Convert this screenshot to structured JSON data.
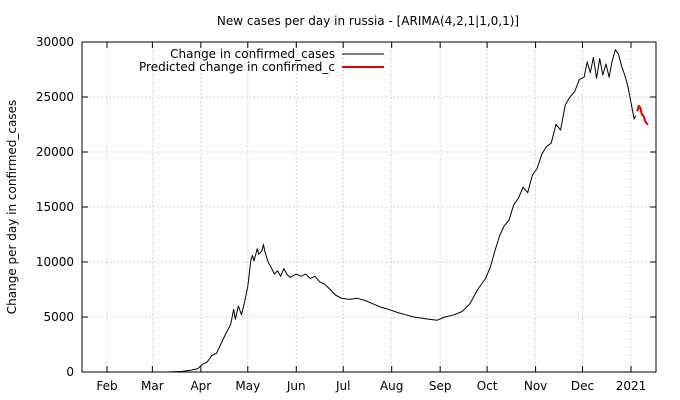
{
  "chart_data": {
    "type": "line",
    "title": "New cases per day in russia -  [ARIMA(4,2,1|1,0,1)]",
    "xlabel": "",
    "ylabel": "Change per day in confirmed_cases",
    "xlim": [
      "2020-01-16",
      "2021-01-17"
    ],
    "ylim": [
      0,
      30000
    ],
    "yticks": [
      0,
      5000,
      10000,
      15000,
      20000,
      25000,
      30000
    ],
    "xticks": [
      {
        "date": "2020-02-01",
        "label": "Feb"
      },
      {
        "date": "2020-03-01",
        "label": "Mar"
      },
      {
        "date": "2020-04-01",
        "label": "Apr"
      },
      {
        "date": "2020-05-01",
        "label": "May"
      },
      {
        "date": "2020-06-01",
        "label": "Jun"
      },
      {
        "date": "2020-07-01",
        "label": "Jul"
      },
      {
        "date": "2020-08-01",
        "label": "Aug"
      },
      {
        "date": "2020-09-01",
        "label": "Sep"
      },
      {
        "date": "2020-10-01",
        "label": "Oct"
      },
      {
        "date": "2020-11-01",
        "label": "Nov"
      },
      {
        "date": "2020-12-01",
        "label": "Dec"
      },
      {
        "date": "2021-01-01",
        "label": "2021"
      }
    ],
    "grid": true,
    "legend_position": "top-left",
    "series": [
      {
        "name": "Change in confirmed_cases",
        "color": "#000000",
        "points": [
          [
            "2020-03-10",
            0
          ],
          [
            "2020-03-20",
            50
          ],
          [
            "2020-03-25",
            150
          ],
          [
            "2020-03-30",
            300
          ],
          [
            "2020-04-02",
            700
          ],
          [
            "2020-04-05",
            900
          ],
          [
            "2020-04-08",
            1500
          ],
          [
            "2020-04-11",
            1700
          ],
          [
            "2020-04-14",
            2600
          ],
          [
            "2020-04-17",
            3500
          ],
          [
            "2020-04-20",
            4300
          ],
          [
            "2020-04-22",
            5700
          ],
          [
            "2020-04-23",
            4800
          ],
          [
            "2020-04-25",
            6000
          ],
          [
            "2020-04-27",
            5200
          ],
          [
            "2020-04-29",
            6400
          ],
          [
            "2020-05-01",
            7800
          ],
          [
            "2020-05-03",
            10200
          ],
          [
            "2020-05-04",
            10600
          ],
          [
            "2020-05-05",
            10100
          ],
          [
            "2020-05-07",
            11200
          ],
          [
            "2020-05-08",
            10700
          ],
          [
            "2020-05-10",
            11000
          ],
          [
            "2020-05-11",
            11600
          ],
          [
            "2020-05-12",
            10900
          ],
          [
            "2020-05-14",
            10000
          ],
          [
            "2020-05-16",
            9500
          ],
          [
            "2020-05-18",
            8900
          ],
          [
            "2020-05-20",
            9200
          ],
          [
            "2020-05-22",
            8700
          ],
          [
            "2020-05-24",
            9400
          ],
          [
            "2020-05-26",
            8900
          ],
          [
            "2020-05-28",
            8600
          ],
          [
            "2020-06-01",
            8900
          ],
          [
            "2020-06-04",
            8700
          ],
          [
            "2020-06-07",
            8900
          ],
          [
            "2020-06-10",
            8500
          ],
          [
            "2020-06-13",
            8700
          ],
          [
            "2020-06-16",
            8200
          ],
          [
            "2020-06-19",
            8000
          ],
          [
            "2020-06-22",
            7600
          ],
          [
            "2020-06-26",
            7000
          ],
          [
            "2020-06-30",
            6700
          ],
          [
            "2020-07-05",
            6600
          ],
          [
            "2020-07-10",
            6700
          ],
          [
            "2020-07-15",
            6500
          ],
          [
            "2020-07-20",
            6200
          ],
          [
            "2020-07-25",
            5900
          ],
          [
            "2020-07-30",
            5700
          ],
          [
            "2020-08-05",
            5400
          ],
          [
            "2020-08-10",
            5200
          ],
          [
            "2020-08-15",
            5000
          ],
          [
            "2020-08-20",
            4900
          ],
          [
            "2020-08-25",
            4800
          ],
          [
            "2020-08-30",
            4700
          ],
          [
            "2020-09-04",
            5000
          ],
          [
            "2020-09-10",
            5200
          ],
          [
            "2020-09-15",
            5500
          ],
          [
            "2020-09-20",
            6200
          ],
          [
            "2020-09-25",
            7500
          ],
          [
            "2020-09-30",
            8500
          ],
          [
            "2020-10-03",
            9500
          ],
          [
            "2020-10-06",
            11000
          ],
          [
            "2020-10-09",
            12400
          ],
          [
            "2020-10-12",
            13300
          ],
          [
            "2020-10-15",
            13800
          ],
          [
            "2020-10-18",
            15200
          ],
          [
            "2020-10-21",
            15800
          ],
          [
            "2020-10-24",
            16800
          ],
          [
            "2020-10-27",
            16300
          ],
          [
            "2020-10-30",
            17900
          ],
          [
            "2020-11-02",
            18500
          ],
          [
            "2020-11-05",
            19800
          ],
          [
            "2020-11-08",
            20500
          ],
          [
            "2020-11-11",
            20800
          ],
          [
            "2020-11-14",
            22500
          ],
          [
            "2020-11-17",
            22000
          ],
          [
            "2020-11-20",
            24300
          ],
          [
            "2020-11-23",
            25000
          ],
          [
            "2020-11-26",
            25500
          ],
          [
            "2020-11-29",
            26600
          ],
          [
            "2020-12-02",
            26800
          ],
          [
            "2020-12-04",
            28200
          ],
          [
            "2020-12-06",
            27200
          ],
          [
            "2020-12-08",
            28600
          ],
          [
            "2020-12-10",
            26700
          ],
          [
            "2020-12-12",
            28500
          ],
          [
            "2020-12-14",
            27000
          ],
          [
            "2020-12-16",
            28000
          ],
          [
            "2020-12-18",
            26800
          ],
          [
            "2020-12-20",
            28300
          ],
          [
            "2020-12-22",
            29300
          ],
          [
            "2020-12-24",
            28900
          ],
          [
            "2020-12-26",
            27800
          ],
          [
            "2020-12-28",
            27000
          ],
          [
            "2020-12-30",
            26000
          ],
          [
            "2021-01-01",
            24500
          ],
          [
            "2021-01-03",
            23000
          ],
          [
            "2021-01-04",
            23300
          ]
        ]
      },
      {
        "name": "Predicted change in confirmed_c",
        "color": "#e00000",
        "points": [
          [
            "2021-01-05",
            23700
          ],
          [
            "2021-01-06",
            24200
          ],
          [
            "2021-01-07",
            24000
          ],
          [
            "2021-01-08",
            23400
          ],
          [
            "2021-01-09",
            23300
          ],
          [
            "2021-01-10",
            22800
          ],
          [
            "2021-01-11",
            22600
          ],
          [
            "2021-01-12",
            22500
          ]
        ]
      }
    ]
  }
}
